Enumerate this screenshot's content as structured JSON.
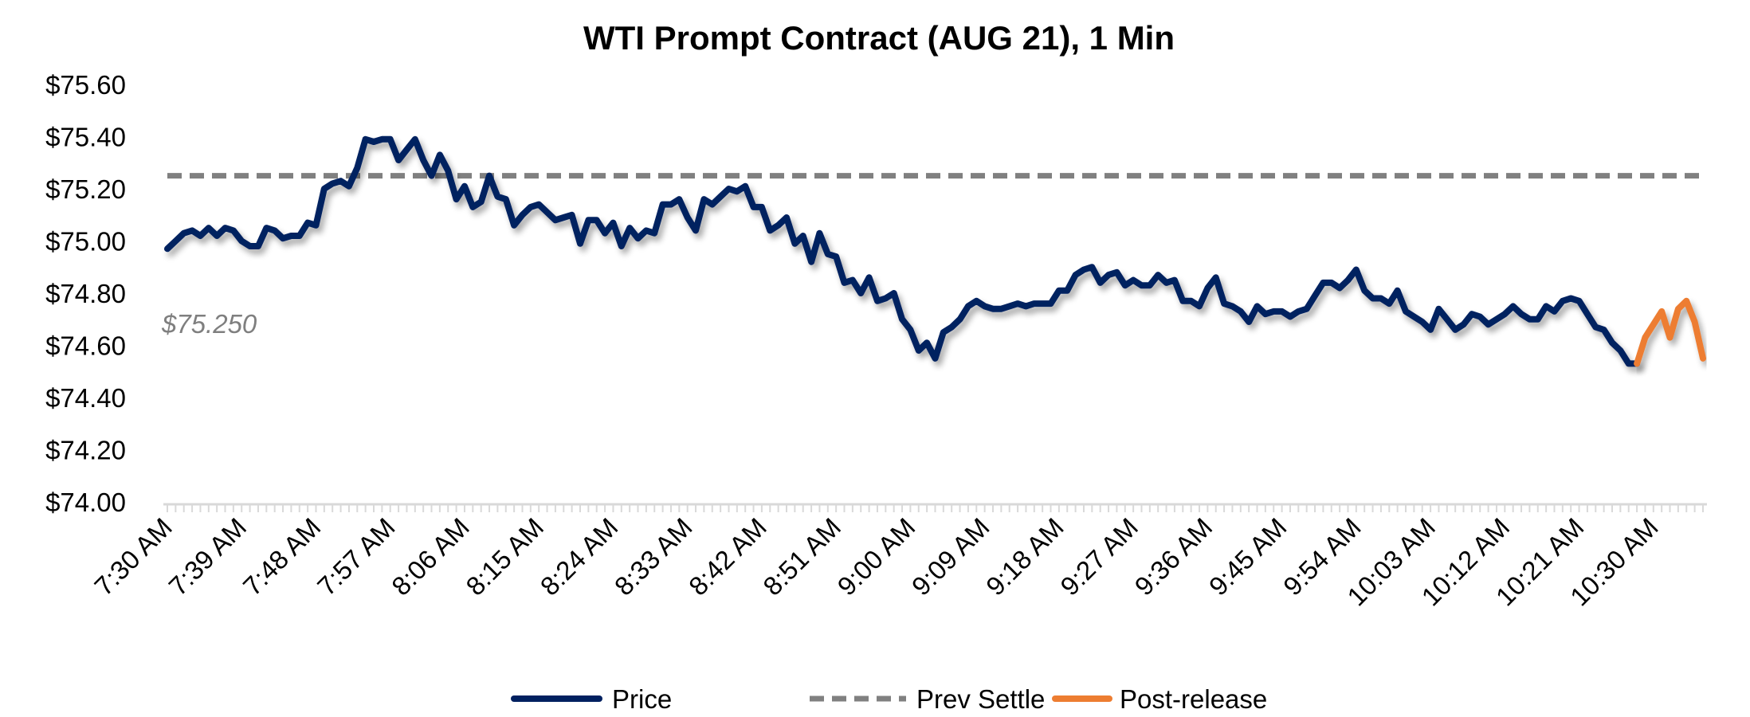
{
  "chart_data": {
    "type": "line",
    "title": "WTI Prompt Contract (AUG 21), 1 Min",
    "xlabel": "",
    "ylabel": "",
    "x_start": "7:30 AM",
    "x_interval_minutes": 1,
    "x_tick_labels": [
      "7:30 AM",
      "7:39 AM",
      "7:48 AM",
      "7:57 AM",
      "8:06 AM",
      "8:15 AM",
      "8:24 AM",
      "8:33 AM",
      "8:42 AM",
      "8:51 AM",
      "9:00 AM",
      "9:09 AM",
      "9:18 AM",
      "9:27 AM",
      "9:36 AM",
      "9:45 AM",
      "9:54 AM",
      "10:03 AM",
      "10:12 AM",
      "10:21 AM",
      "10:30 AM"
    ],
    "x_tick_every_minutes": 9,
    "y_tick_labels": [
      "$75.60",
      "$75.40",
      "$75.20",
      "$75.00",
      "$74.80",
      "$74.60",
      "$74.40",
      "$74.20",
      "$74.00"
    ],
    "ylim": [
      74.0,
      75.6
    ],
    "grid": false,
    "legend_placement": "bottom",
    "series": [
      {
        "name": "Price",
        "color": "#002060",
        "style": "solid",
        "start_time": "7:30 AM",
        "values": [
          74.97,
          75.0,
          75.03,
          75.04,
          75.02,
          75.05,
          75.02,
          75.05,
          75.04,
          75.0,
          74.98,
          74.98,
          75.05,
          75.04,
          75.01,
          75.02,
          75.02,
          75.07,
          75.06,
          75.2,
          75.22,
          75.23,
          75.21,
          75.28,
          75.39,
          75.38,
          75.39,
          75.39,
          75.31,
          75.35,
          75.39,
          75.31,
          75.25,
          75.33,
          75.27,
          75.16,
          75.21,
          75.13,
          75.15,
          75.25,
          75.17,
          75.16,
          75.06,
          75.1,
          75.13,
          75.14,
          75.11,
          75.08,
          75.09,
          75.1,
          74.99,
          75.08,
          75.08,
          75.03,
          75.07,
          74.98,
          75.05,
          75.01,
          75.04,
          75.03,
          75.14,
          75.14,
          75.16,
          75.09,
          75.04,
          75.16,
          75.14,
          75.17,
          75.2,
          75.19,
          75.21,
          75.13,
          75.13,
          75.04,
          75.06,
          75.09,
          74.99,
          75.02,
          74.92,
          75.03,
          74.95,
          74.94,
          74.84,
          74.85,
          74.8,
          74.86,
          74.77,
          74.78,
          74.8,
          74.7,
          74.66,
          74.58,
          74.61,
          74.55,
          74.65,
          74.67,
          74.7,
          74.75,
          74.77,
          74.75,
          74.74,
          74.74,
          74.75,
          74.76,
          74.75,
          74.76,
          74.76,
          74.76,
          74.81,
          74.81,
          74.87,
          74.89,
          74.9,
          74.84,
          74.87,
          74.88,
          74.83,
          74.85,
          74.83,
          74.83,
          74.87,
          74.84,
          74.85,
          74.77,
          74.77,
          74.75,
          74.82,
          74.86,
          74.76,
          74.75,
          74.73,
          74.69,
          74.75,
          74.72,
          74.73,
          74.73,
          74.71,
          74.73,
          74.74,
          74.79,
          74.84,
          74.84,
          74.82,
          74.85,
          74.89,
          74.81,
          74.78,
          74.78,
          74.76,
          74.81,
          74.73,
          74.71,
          74.69,
          74.66,
          74.74,
          74.7,
          74.66,
          74.68,
          74.72,
          74.71,
          74.68,
          74.7,
          74.72,
          74.75,
          74.72,
          74.7,
          74.7,
          74.75,
          74.73,
          74.77,
          74.78,
          74.77,
          74.72,
          74.67,
          74.66,
          74.61,
          74.58,
          74.53,
          74.53
        ]
      },
      {
        "name": "Prev Settle",
        "color": "#808080",
        "style": "dashed",
        "value": 75.25
      },
      {
        "name": "Post-release",
        "color": "#ED7D31",
        "style": "solid",
        "start_time": "10:28 AM",
        "values": [
          74.53,
          74.63,
          74.68,
          74.73,
          74.63,
          74.74,
          74.77,
          74.69,
          74.55
        ]
      }
    ],
    "annotations": [
      {
        "text": "$75.250",
        "refers_to": "Prev Settle"
      }
    ],
    "legend": [
      "Price",
      "Prev Settle",
      "Post-release"
    ]
  }
}
